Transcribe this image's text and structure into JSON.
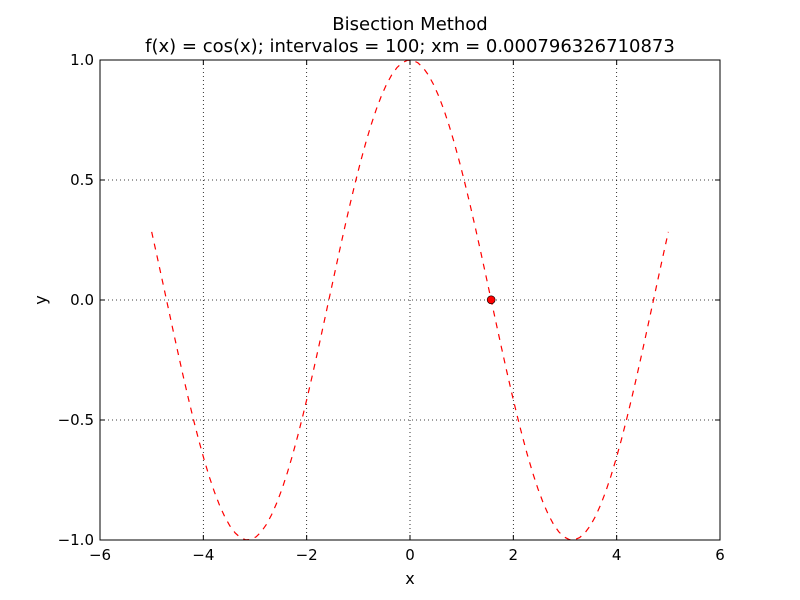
{
  "chart_data": {
    "type": "line",
    "title": "Bisection Method",
    "subtitle": "f(x) = cos(x); intervalos = 100; xm = 0.000796326710873",
    "xlabel": "x",
    "ylabel": "y",
    "xlim": [
      -6,
      6
    ],
    "ylim": [
      -1.0,
      1.0
    ],
    "xticks": [
      -6,
      -4,
      -2,
      0,
      2,
      4,
      6
    ],
    "xtick_labels": [
      "−6",
      "−4",
      "−2",
      "0",
      "2",
      "4",
      "6"
    ],
    "yticks": [
      -1.0,
      -0.5,
      0.0,
      0.5,
      1.0
    ],
    "ytick_labels": [
      "−1.0",
      "−0.5",
      "0.0",
      "0.5",
      "1.0"
    ],
    "grid": true,
    "series": [
      {
        "function": "cos(x)",
        "x_range": [
          -5,
          5
        ],
        "samples": 100,
        "color": "#ff0000",
        "line_style": "dashed"
      }
    ],
    "points": [
      {
        "x": 1.5708,
        "y": 0.0008,
        "color": "#ff0000"
      }
    ]
  }
}
